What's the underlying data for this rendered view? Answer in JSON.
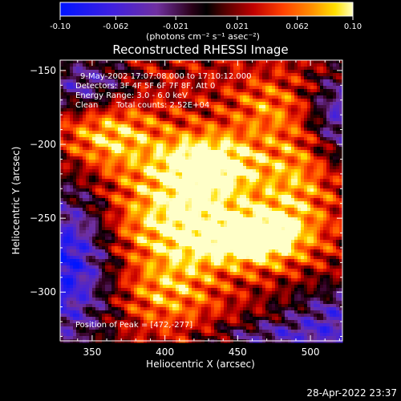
{
  "colorbar": {
    "tick_labels": [
      "-0.10",
      "-0.062",
      "-0.021",
      "0.021",
      "0.062",
      "0.10"
    ],
    "tick_values": [
      -0.1,
      -0.062,
      -0.021,
      0.021,
      0.062,
      0.1
    ],
    "range": [
      -0.1,
      0.1
    ],
    "units_label": "(photons cm⁻² s⁻¹ asec⁻²)"
  },
  "chart_data": {
    "type": "heatmap",
    "title": "Reconstructed RHESSI Image",
    "xlabel": "Heliocentric X (arcsec)",
    "ylabel": "Heliocentric Y (arcsec)",
    "xlim": [
      328,
      522
    ],
    "ylim": [
      -333,
      -143
    ],
    "xticks": [
      350,
      400,
      450,
      500
    ],
    "yticks": [
      -150,
      -200,
      -250,
      -300
    ],
    "xtick_labels": [
      "350",
      "400",
      "450",
      "500"
    ],
    "ytick_labels": [
      "−150",
      "−200",
      "−250",
      "−300"
    ],
    "peak": [
      472,
      -277
    ],
    "annotations": {
      "time": "9-May-2002 17:07:08.000 to 17:10:12.000",
      "detectors": "Detectors: 3F 4F 5F 6F 7F 8F, Att 0",
      "energy": "Energy Range: 3.0 - 6.0 keV",
      "method": "Clean",
      "counts": "Total counts: 2.52E+04",
      "peak_text": "Position of Peak = [472,-277]"
    }
  },
  "footer": {
    "timestamp": "28-Apr-2022 23:37"
  }
}
